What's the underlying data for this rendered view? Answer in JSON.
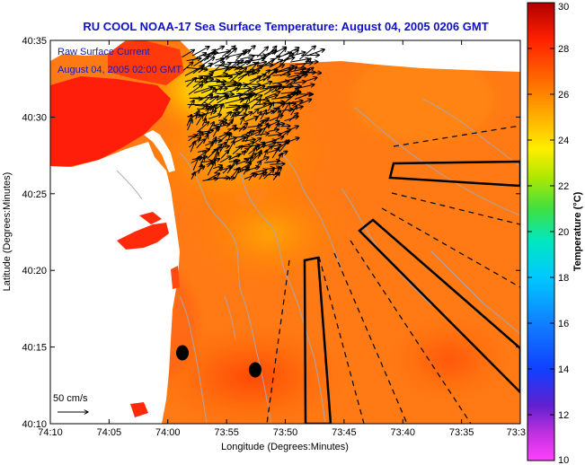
{
  "title": "RU COOL  NOAA-17  Sea Surface Temperature:  August 04, 2005 0206 GMT",
  "legend": {
    "line1": "Raw Surface Current",
    "line2": "August 04, 2005 02:00 GMT"
  },
  "scale_label": "50 cm/s",
  "chart_data": {
    "type": "map",
    "title": "RU COOL  NOAA-17  Sea Surface Temperature:  August 04, 2005 0206 GMT",
    "xlabel": "Longitude (Degrees:Minutes)",
    "ylabel": "Latitude (Degrees:Minutes)",
    "x_ticks": [
      "74:10",
      "74:05",
      "74:00",
      "73:55",
      "73:50",
      "73:45",
      "73:40",
      "73:35",
      "73:3"
    ],
    "y_ticks": [
      "40:10",
      "40:15",
      "40:20",
      "40:25",
      "40:30",
      "40:35"
    ],
    "colorbar": {
      "label": "Temperature (°C)",
      "min": 10,
      "max": 30,
      "ticks": [
        "10",
        "12",
        "14",
        "16",
        "18",
        "20",
        "22",
        "24",
        "26",
        "28",
        "30"
      ]
    }
  },
  "colors": {
    "title": "#1010c8",
    "ocean_base": "#ff7a14",
    "warm_bay": "#ff1e0a",
    "cool_plume": "#ffe600",
    "land": "#ffffff",
    "vector": "#000000"
  }
}
